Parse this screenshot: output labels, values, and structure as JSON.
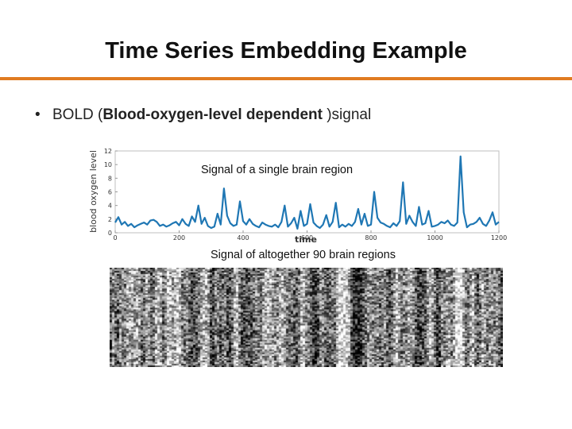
{
  "slide": {
    "title": "Time Series Embedding Example",
    "accent_color": "#e07b21"
  },
  "bullet": {
    "marker": "•",
    "prefix": "BOLD (",
    "bold_text": "Blood-oxygen-level dependent",
    "suffix": " )signal"
  },
  "figure_top": {
    "caption": "Signal of a single brain region"
  },
  "figure_bottom": {
    "caption": "Signal of altogether 90 brain regions",
    "image_style": "grayscale-heatmap"
  },
  "chart_data": {
    "type": "line",
    "title": "",
    "xlabel": "time",
    "ylabel": "blood oxygen level",
    "xlim": [
      0,
      1200
    ],
    "ylim": [
      0,
      12
    ],
    "x_ticks": [
      0,
      200,
      400,
      600,
      800,
      1000,
      1200
    ],
    "y_ticks": [
      0,
      2,
      4,
      6,
      8,
      10,
      12
    ],
    "line_color": "#1f77b4",
    "grid": false,
    "series": [
      {
        "x": [
          0,
          10,
          20,
          30,
          40,
          50,
          60,
          70,
          80,
          90,
          100,
          110,
          120,
          130,
          140,
          150,
          160,
          170,
          180,
          190,
          200,
          210,
          220,
          230,
          240,
          250,
          260,
          270,
          280,
          290,
          300,
          310,
          320,
          330,
          340,
          350,
          360,
          370,
          380,
          390,
          400,
          410,
          420,
          430,
          440,
          450,
          460,
          470,
          480,
          490,
          500,
          510,
          520,
          530,
          540,
          550,
          560,
          570,
          580,
          590,
          600,
          610,
          620,
          630,
          640,
          650,
          660,
          670,
          680,
          690,
          700,
          710,
          720,
          730,
          740,
          750,
          760,
          770,
          780,
          790,
          800,
          810,
          820,
          830,
          840,
          850,
          860,
          870,
          880,
          890,
          900,
          910,
          920,
          930,
          940,
          950,
          960,
          970,
          980,
          990,
          1000,
          1010,
          1020,
          1030,
          1040,
          1050,
          1060,
          1070,
          1080,
          1090,
          1100,
          1110,
          1120,
          1130,
          1140,
          1150,
          1160,
          1170,
          1180,
          1190,
          1200
        ],
        "y": [
          1.5,
          2.3,
          1.2,
          1.6,
          1.0,
          1.3,
          0.8,
          1.1,
          1.3,
          1.5,
          1.2,
          1.8,
          1.9,
          1.6,
          1.0,
          1.2,
          0.9,
          1.1,
          1.4,
          1.6,
          1.1,
          2.0,
          1.3,
          1.0,
          2.4,
          1.6,
          4.0,
          1.3,
          2.2,
          1.0,
          0.7,
          0.9,
          2.8,
          1.2,
          6.5,
          2.5,
          1.4,
          1.0,
          1.2,
          4.6,
          1.7,
          1.2,
          2.0,
          1.3,
          1.0,
          0.8,
          1.5,
          1.2,
          1.0,
          0.9,
          1.2,
          0.8,
          1.6,
          4.0,
          0.9,
          1.4,
          2.2,
          0.6,
          3.2,
          1.0,
          1.3,
          4.2,
          1.5,
          1.0,
          0.7,
          1.2,
          2.6,
          0.9,
          1.6,
          4.4,
          0.8,
          1.2,
          0.9,
          1.3,
          1.0,
          1.6,
          3.5,
          1.2,
          2.8,
          1.0,
          1.2,
          6.0,
          2.2,
          1.5,
          1.3,
          1.0,
          0.8,
          1.4,
          1.0,
          1.7,
          7.4,
          1.3,
          2.5,
          1.6,
          1.0,
          3.8,
          1.2,
          1.4,
          3.2,
          0.9,
          1.0,
          1.2,
          1.6,
          1.4,
          1.8,
          1.2,
          1.0,
          1.5,
          11.2,
          3.0,
          0.8,
          1.2,
          1.3,
          1.6,
          2.2,
          1.3,
          1.0,
          1.8,
          3.0,
          1.2,
          1.6
        ]
      }
    ]
  }
}
